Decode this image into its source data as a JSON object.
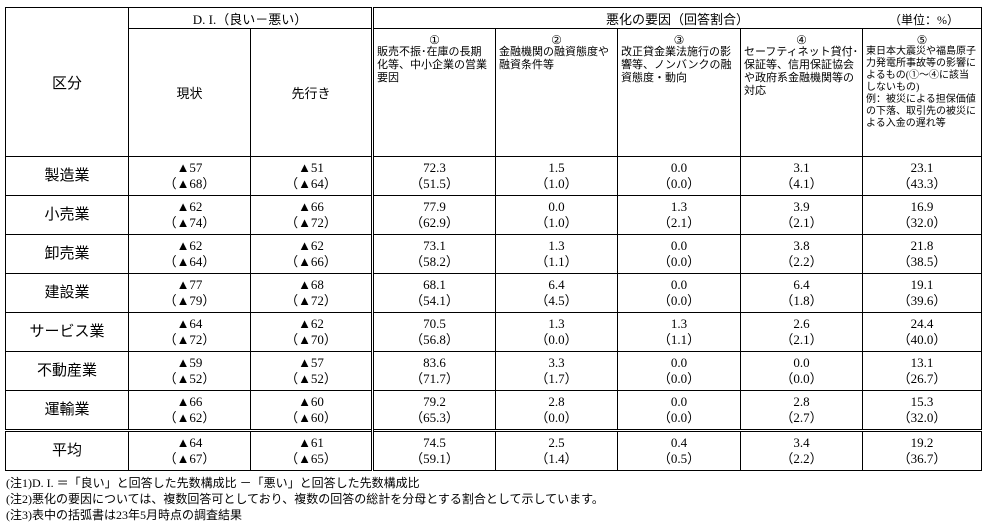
{
  "header": {
    "category": "区分",
    "di_title": "D. I.（良い－悪い）",
    "di_current": "現状",
    "di_outlook": "先行き",
    "factors_title": "悪化の要因（回答割合）",
    "unit": "（単位：%）",
    "factors": [
      {
        "number": "①",
        "label": "販売不振･在庫の長期化等、中小企業の営業要因"
      },
      {
        "number": "②",
        "label": "金融機関の融資態度や融資条件等"
      },
      {
        "number": "③",
        "label": "改正貸金業法施行の影響等、ノンバンクの融資態度・動向"
      },
      {
        "number": "④",
        "label": "セーフティネット貸付･保証等、信用保証協会や政府系金融機関等の対応"
      },
      {
        "number": "⑤",
        "label": "東日本大震災や福島原子力発電所事故等の影響によるもの(①～④に該当しないもの)",
        "example": "例：被災による担保価値の下落、取引先の被災による入金の遅れ等"
      }
    ]
  },
  "table": {
    "rows": [
      {
        "category": "製造業",
        "cells": [
          [
            "▲57",
            "（▲68）"
          ],
          [
            "▲51",
            "（▲64）"
          ],
          [
            "72.3",
            "（51.5）"
          ],
          [
            "1.5",
            "（1.0）"
          ],
          [
            "0.0",
            "（0.0）"
          ],
          [
            "3.1",
            "（4.1）"
          ],
          [
            "23.1",
            "（43.3）"
          ]
        ]
      },
      {
        "category": "小売業",
        "cells": [
          [
            "▲62",
            "（▲74）"
          ],
          [
            "▲66",
            "（▲72）"
          ],
          [
            "77.9",
            "（62.9）"
          ],
          [
            "0.0",
            "（1.0）"
          ],
          [
            "1.3",
            "（2.1）"
          ],
          [
            "3.9",
            "（2.1）"
          ],
          [
            "16.9",
            "（32.0）"
          ]
        ]
      },
      {
        "category": "卸売業",
        "cells": [
          [
            "▲62",
            "（▲64）"
          ],
          [
            "▲62",
            "（▲66）"
          ],
          [
            "73.1",
            "（58.2）"
          ],
          [
            "1.3",
            "（1.1）"
          ],
          [
            "0.0",
            "（0.0）"
          ],
          [
            "3.8",
            "（2.2）"
          ],
          [
            "21.8",
            "（38.5）"
          ]
        ]
      },
      {
        "category": "建設業",
        "cells": [
          [
            "▲77",
            "（▲79）"
          ],
          [
            "▲68",
            "（▲72）"
          ],
          [
            "68.1",
            "（54.1）"
          ],
          [
            "6.4",
            "（4.5）"
          ],
          [
            "0.0",
            "（0.0）"
          ],
          [
            "6.4",
            "（1.8）"
          ],
          [
            "19.1",
            "（39.6）"
          ]
        ]
      },
      {
        "category": "サービス業",
        "cells": [
          [
            "▲64",
            "（▲72）"
          ],
          [
            "▲62",
            "（▲70）"
          ],
          [
            "70.5",
            "（56.8）"
          ],
          [
            "1.3",
            "（0.0）"
          ],
          [
            "1.3",
            "（1.1）"
          ],
          [
            "2.6",
            "（2.1）"
          ],
          [
            "24.4",
            "（40.0）"
          ]
        ]
      },
      {
        "category": "不動産業",
        "cells": [
          [
            "▲59",
            "（▲52）"
          ],
          [
            "▲57",
            "（▲52）"
          ],
          [
            "83.6",
            "（71.7）"
          ],
          [
            "3.3",
            "（1.7）"
          ],
          [
            "0.0",
            "（0.0）"
          ],
          [
            "0.0",
            "（0.0）"
          ],
          [
            "13.1",
            "（26.7）"
          ]
        ]
      },
      {
        "category": "運輸業",
        "cells": [
          [
            "▲66",
            "（▲62）"
          ],
          [
            "▲60",
            "（▲60）"
          ],
          [
            "79.2",
            "（65.3）"
          ],
          [
            "2.8",
            "（0.0）"
          ],
          [
            "0.0",
            "（0.0）"
          ],
          [
            "2.8",
            "（2.7）"
          ],
          [
            "15.3",
            "（32.0）"
          ]
        ]
      },
      {
        "category": "平均",
        "cells": [
          [
            "▲64",
            "（▲67）"
          ],
          [
            "▲61",
            "（▲65）"
          ],
          [
            "74.5",
            "（59.1）"
          ],
          [
            "2.5",
            "（1.4）"
          ],
          [
            "0.4",
            "（0.5）"
          ],
          [
            "3.4",
            "（2.2）"
          ],
          [
            "19.2",
            "（36.7）"
          ]
        ]
      }
    ]
  },
  "notes": [
    "(注1)D. I. ＝「良い」と回答した先数構成比 －「悪い」と回答した先数構成比",
    "(注2)悪化の要因については、複数回答可としており、複数の回答の総計を分母とする割合として示しています。",
    "(注3)表中の括弧書は23年5月時点の調査結果"
  ]
}
